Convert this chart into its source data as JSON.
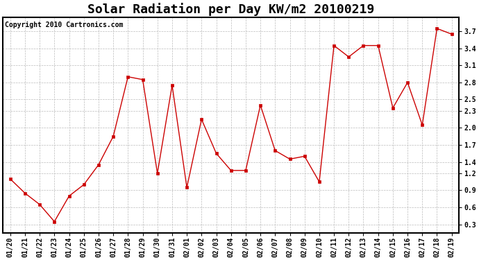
{
  "title": "Solar Radiation per Day KW/m2 20100219",
  "copyright": "Copyright 2010 Cartronics.com",
  "dates": [
    "01/20",
    "01/21",
    "01/22",
    "01/23",
    "01/24",
    "01/25",
    "01/26",
    "01/27",
    "01/28",
    "01/29",
    "01/30",
    "01/31",
    "02/01",
    "02/02",
    "02/03",
    "02/04",
    "02/05",
    "02/06",
    "02/07",
    "02/08",
    "02/09",
    "02/10",
    "02/11",
    "02/12",
    "02/13",
    "02/14",
    "02/15",
    "02/16",
    "02/17",
    "02/18",
    "02/19"
  ],
  "values": [
    1.1,
    0.85,
    0.65,
    0.35,
    0.8,
    1.0,
    1.35,
    1.85,
    2.9,
    2.85,
    1.2,
    2.75,
    0.95,
    2.15,
    1.55,
    1.25,
    1.25,
    2.4,
    1.6,
    1.45,
    1.5,
    1.05,
    3.45,
    3.25,
    3.45,
    3.45,
    2.35,
    2.8,
    2.05,
    3.75,
    3.65
  ],
  "line_color": "#cc0000",
  "marker": "s",
  "marker_size": 3,
  "bg_color": "#ffffff",
  "plot_bg_color": "#ffffff",
  "grid_color": "#bbbbbb",
  "ylim": [
    0.15,
    3.95
  ],
  "yticks": [
    0.3,
    0.6,
    0.9,
    1.2,
    1.4,
    1.7,
    2.0,
    2.3,
    2.5,
    2.8,
    3.1,
    3.4,
    3.7
  ],
  "title_fontsize": 13,
  "tick_fontsize": 7,
  "copyright_fontsize": 7
}
